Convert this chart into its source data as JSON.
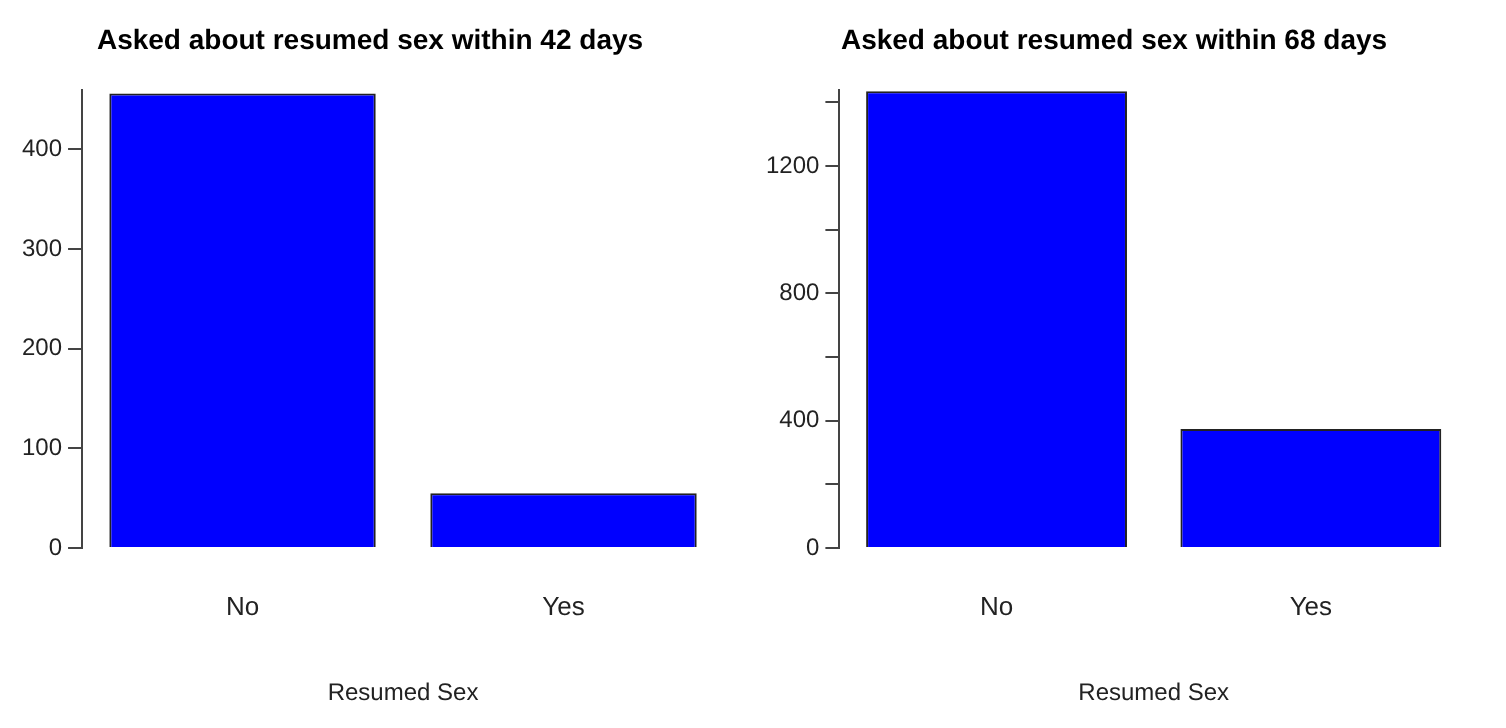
{
  "chart_data": [
    {
      "type": "bar",
      "title": "Asked about resumed sex within 42 days",
      "xlabel": "Resumed Sex",
      "categories": [
        "No",
        "Yes"
      ],
      "values": [
        456,
        55
      ],
      "color": "#0000ff",
      "ylim": [
        0,
        460
      ],
      "yticks": [
        0,
        100,
        200,
        300,
        400
      ],
      "grid": false,
      "legend": false
    },
    {
      "type": "bar",
      "title": "Asked about resumed sex within 68 days",
      "xlabel": "Resumed Sex",
      "categories": [
        "No",
        "Yes"
      ],
      "values": [
        1435,
        374
      ],
      "color": "#0000ff",
      "ylim": [
        0,
        1440
      ],
      "yticks": [
        0,
        {
          "value": 200,
          "label": null
        },
        400,
        {
          "value": 600,
          "label": null
        },
        800,
        {
          "value": 1000,
          "label": null
        },
        1200,
        {
          "value": 1400,
          "label": null
        }
      ],
      "grid": false,
      "legend": false
    }
  ]
}
